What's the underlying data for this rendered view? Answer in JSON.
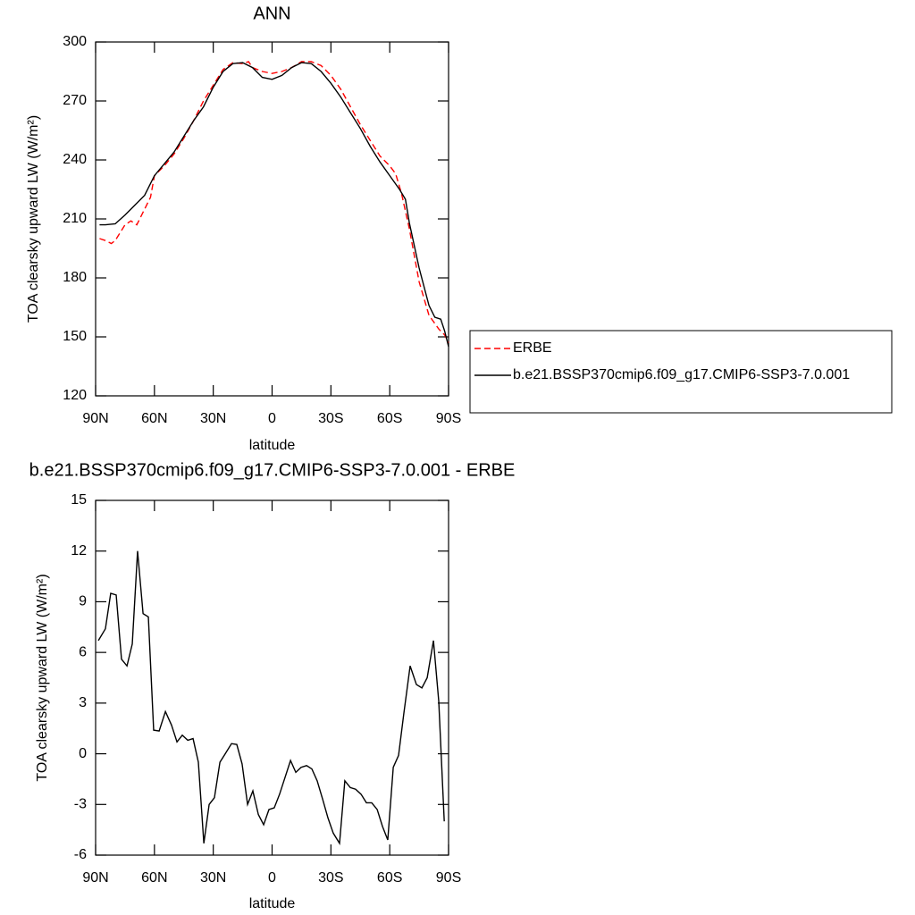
{
  "chart_data": [
    {
      "type": "line",
      "title": "ANN",
      "xlabel": "latitude",
      "ylabel": "TOA clearsky upward LW (W/m²)",
      "xlim": [
        90,
        -90
      ],
      "ylim": [
        120,
        300
      ],
      "xticks": [
        {
          "value": 90,
          "label": "90N"
        },
        {
          "value": 60,
          "label": "60N"
        },
        {
          "value": 30,
          "label": "30N"
        },
        0,
        {
          "value": -30,
          "label": "30S"
        },
        {
          "value": -60,
          "label": "60S"
        },
        {
          "value": -90,
          "label": "90S"
        }
      ],
      "yticks": [
        120,
        150,
        180,
        210,
        240,
        270,
        300
      ],
      "legend": "right",
      "series": [
        {
          "name": "ERBE",
          "color": "#ff0000",
          "linestyle": "dashed",
          "x": [
            88,
            85,
            82,
            80,
            75,
            72,
            69,
            65,
            62,
            60,
            55,
            50,
            45,
            40,
            35,
            30,
            25,
            20,
            15,
            12,
            10,
            5,
            0,
            -5,
            -10,
            -15,
            -20,
            -25,
            -30,
            -35,
            -40,
            -45,
            -50,
            -55,
            -60,
            -63,
            -66,
            -70,
            -75,
            -80,
            -85,
            -88,
            -90
          ],
          "values": [
            200,
            199,
            197.5,
            199,
            207,
            209,
            207,
            215,
            221,
            232,
            237,
            243,
            251,
            260,
            270,
            278,
            286,
            289.5,
            289,
            290,
            287,
            285,
            284,
            285,
            287,
            290,
            290,
            288,
            283,
            276,
            267,
            258,
            250,
            242,
            237,
            233,
            223,
            205,
            178,
            161,
            154,
            151,
            147
          ]
        },
        {
          "name": "b.e21.BSSP370cmip6.f09_g17.CMIP6-SSP3-7.0.001",
          "color": "#000000",
          "linestyle": "solid",
          "x": [
            88,
            85,
            80,
            75,
            70,
            65,
            60,
            55,
            50,
            45,
            40,
            35,
            30,
            25,
            20,
            15,
            10,
            5,
            0,
            -5,
            -10,
            -15,
            -20,
            -25,
            -30,
            -35,
            -40,
            -45,
            -50,
            -55,
            -60,
            -65,
            -68,
            -70,
            -75,
            -80,
            -83,
            -86,
            -88,
            -90
          ],
          "values": [
            207,
            207,
            207.5,
            212,
            217,
            222,
            232,
            238,
            244,
            252,
            260,
            267,
            277,
            285,
            289,
            289.5,
            287,
            282,
            281,
            283,
            287,
            289.5,
            289,
            285,
            279,
            272,
            264,
            256,
            247,
            239,
            232,
            225,
            220,
            208,
            185,
            166,
            160,
            159,
            153,
            145
          ]
        }
      ]
    },
    {
      "type": "line",
      "title": "b.e21.BSSP370cmip6.f09_g17.CMIP6-SSP3-7.0.001 - ERBE",
      "xlabel": "latitude",
      "ylabel": "TOA clearsky upward LW (W/m²)",
      "xlim": [
        90,
        -90
      ],
      "ylim": [
        -6,
        15
      ],
      "xticks": [
        {
          "value": 90,
          "label": "90N"
        },
        {
          "value": 60,
          "label": "60N"
        },
        {
          "value": 30,
          "label": "30N"
        },
        0,
        {
          "value": -30,
          "label": "30S"
        },
        {
          "value": -60,
          "label": "60S"
        },
        {
          "value": -90,
          "label": "90S"
        }
      ],
      "yticks": [
        -6,
        -3,
        0,
        3,
        6,
        9,
        12,
        15
      ],
      "series": [
        {
          "color": "#000000",
          "linestyle": "solid",
          "x": [
            88.6,
            85,
            82.3,
            79.5,
            76.8,
            74,
            71.3,
            68.6,
            65.8,
            63.1,
            60.4,
            57.6,
            54.4,
            51.3,
            48.5,
            45.8,
            43,
            40.3,
            37.6,
            34.8,
            32.1,
            29.4,
            26.6,
            23.9,
            20.7,
            18,
            15.3,
            12.5,
            9.8,
            7,
            4.3,
            1.6,
            -1.1,
            -3.8,
            -6.6,
            -9.4,
            -12.1,
            -14.8,
            -17.6,
            -20.3,
            -23,
            -25.8,
            -28.5,
            -31.2,
            -34.4,
            -37.1,
            -39.9,
            -42.6,
            -45.4,
            -48.1,
            -50.8,
            -53.6,
            -56.3,
            -59,
            -61.8,
            -64.5,
            -67.2,
            -70.4,
            -73.6,
            -76.4,
            -79.1,
            -82.3,
            -85,
            -87.8
          ],
          "values": [
            6.7,
            7.4,
            9.5,
            9.4,
            5.6,
            5.2,
            6.5,
            12.0,
            8.3,
            8.1,
            1.4,
            1.35,
            2.5,
            1.7,
            0.7,
            1.1,
            0.8,
            0.9,
            -0.5,
            -5.3,
            -3.0,
            -2.6,
            -0.5,
            0.0,
            0.6,
            0.55,
            -0.6,
            -3.0,
            -2.2,
            -3.6,
            -4.2,
            -3.3,
            -3.2,
            -2.4,
            -1.4,
            -0.4,
            -1.1,
            -0.8,
            -0.7,
            -0.9,
            -1.6,
            -2.7,
            -3.8,
            -4.7,
            -5.3,
            -1.6,
            -2.0,
            -2.1,
            -2.4,
            -2.9,
            -2.9,
            -3.3,
            -4.3,
            -5.1,
            -0.8,
            -0.1,
            2.4,
            5.2,
            4.1,
            3.9,
            4.5,
            6.7,
            3.1,
            -4.0
          ]
        }
      ]
    }
  ]
}
